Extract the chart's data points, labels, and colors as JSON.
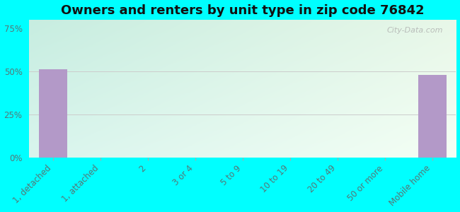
{
  "title": "Owners and renters by unit type in zip code 76842",
  "categories": [
    "1, detached",
    "1, attached",
    "2",
    "3 or 4",
    "5 to 9",
    "10 to 19",
    "20 to 49",
    "50 or more",
    "Mobile home"
  ],
  "values": [
    51.0,
    0,
    0,
    0,
    0,
    0,
    0,
    0,
    48.0
  ],
  "bar_color": "#b399c8",
  "background_outer": "#00ffff",
  "grad_top_left": "#c8ede0",
  "grad_top_right": "#e8f5e8",
  "grad_bottom_left": "#d8f5ee",
  "grad_bottom_right": "#f5fff5",
  "yticks": [
    0,
    25,
    50,
    75
  ],
  "ylim": [
    0,
    80
  ],
  "title_fontsize": 13,
  "tick_fontsize": 8.5,
  "watermark": "City-Data.com",
  "tick_color": "#557777",
  "title_color": "#111111"
}
